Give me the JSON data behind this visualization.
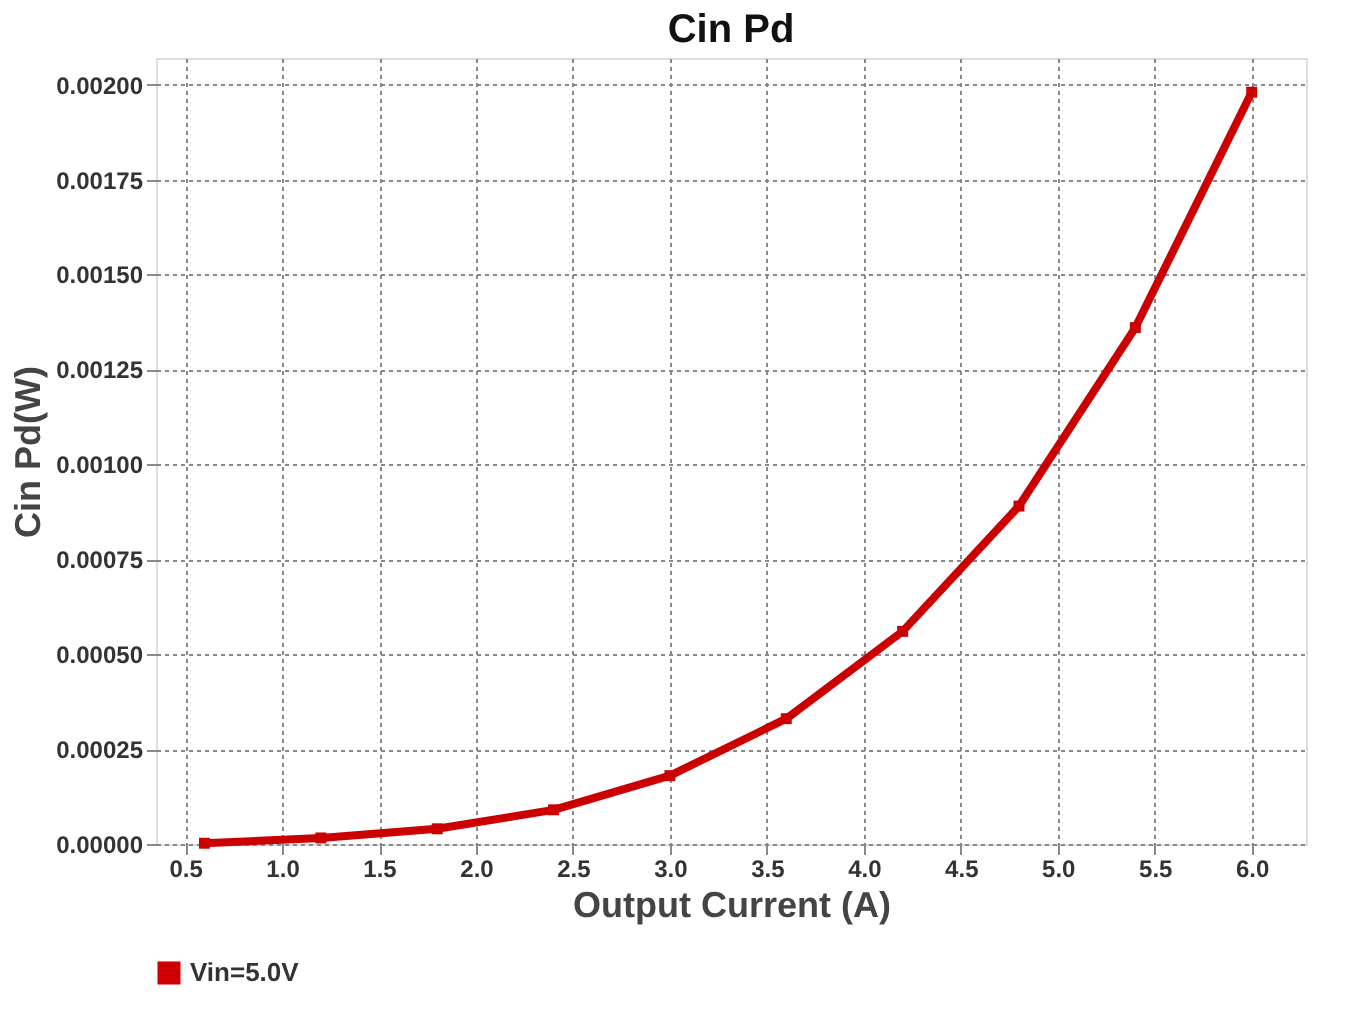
{
  "chart_data": {
    "type": "line",
    "title": "Cin Pd",
    "xlabel": "Output Current (A)",
    "ylabel": "Cin Pd(W)",
    "x": [
      0.6,
      1.2,
      1.8,
      2.4,
      3.0,
      3.6,
      4.2,
      4.8,
      5.4,
      6.0
    ],
    "series": [
      {
        "name": "Vin=5.0V",
        "color": "#cc0000",
        "values": [
          2e-06,
          1.6e-05,
          4e-05,
          9e-05,
          0.00018,
          0.00033,
          0.00056,
          0.00089,
          0.00136,
          0.00198
        ]
      }
    ],
    "xlim": [
      0.35,
      6.28
    ],
    "ylim": [
      0,
      0.00207
    ],
    "xticks": [
      {
        "value": 0.5,
        "label": "0.5"
      },
      {
        "value": 1,
        "label": "1.0"
      },
      {
        "value": 1.5,
        "label": "1.5"
      },
      {
        "value": 2,
        "label": "2.0"
      },
      {
        "value": 2.5,
        "label": "2.5"
      },
      {
        "value": 3,
        "label": "3.0"
      },
      {
        "value": 3.5,
        "label": "3.5"
      },
      {
        "value": 4,
        "label": "4.0"
      },
      {
        "value": 4.5,
        "label": "4.5"
      },
      {
        "value": 5,
        "label": "5.0"
      },
      {
        "value": 5.5,
        "label": "5.5"
      },
      {
        "value": 6,
        "label": "6.0"
      }
    ],
    "yticks": [
      {
        "value": 0,
        "label": "0.00000"
      },
      {
        "value": 0.00025,
        "label": "0.00025"
      },
      {
        "value": 0.0005,
        "label": "0.00050"
      },
      {
        "value": 0.00075,
        "label": "0.00075"
      },
      {
        "value": 0.001,
        "label": "0.00100"
      },
      {
        "value": 0.00125,
        "label": "0.00125"
      },
      {
        "value": 0.0015,
        "label": "0.00150"
      },
      {
        "value": 0.00175,
        "label": "0.00175"
      },
      {
        "value": 0.002,
        "label": "0.00200"
      }
    ],
    "grid": true,
    "legend": "bottom",
    "marker": "square",
    "line_style": "solid"
  }
}
